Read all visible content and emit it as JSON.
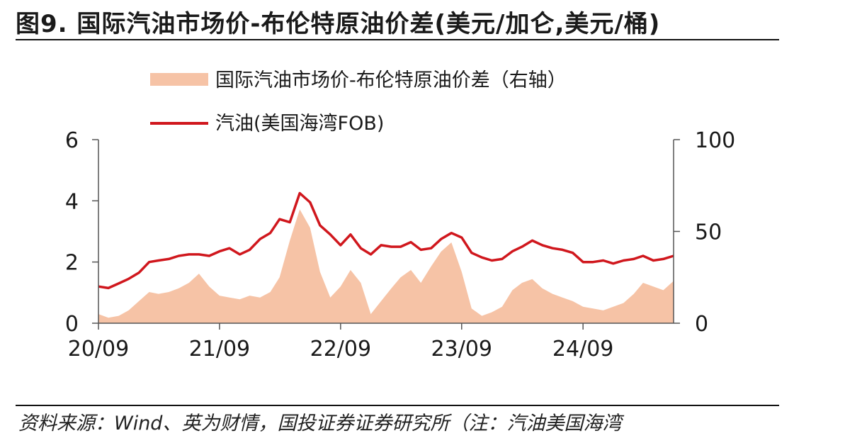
{
  "header": {
    "title": "图9. 国际汽油市场价-布伦特原油价差(美元/加仑,美元/桶)"
  },
  "footer": {
    "source": "资料来源：Wind、英为财情，国投证券证券研究所（注：汽油美国海湾"
  },
  "colors": {
    "line": "#d0171d",
    "area": "#f6c3a6",
    "axis": "#555555",
    "text": "#1a1a1a"
  },
  "chart_data": {
    "type": "line+area",
    "legend": {
      "placement": "top-left",
      "entries": [
        "国际汽油市场价-布伦特原油价差（右轴）",
        "汽油(美国海湾FOB)"
      ]
    },
    "x": {
      "tick_labels": [
        "20/09",
        "21/09",
        "22/09",
        "23/09",
        "24/09"
      ],
      "range": [
        "2020-09",
        "2025-06"
      ]
    },
    "y_left": {
      "range": [
        0,
        6
      ],
      "ticks": [
        "0",
        "2",
        "4",
        "6"
      ]
    },
    "y_right": {
      "range": [
        0,
        100
      ],
      "ticks": [
        "0",
        "50",
        "100"
      ]
    },
    "grid": false,
    "series": [
      {
        "name": "汽油(美国海湾FOB)",
        "axis": "left",
        "kind": "line",
        "dates": [
          "2020-09",
          "2020-10",
          "2020-11",
          "2020-12",
          "2021-01",
          "2021-02",
          "2021-03",
          "2021-04",
          "2021-05",
          "2021-06",
          "2021-07",
          "2021-08",
          "2021-09",
          "2021-10",
          "2021-11",
          "2021-12",
          "2022-01",
          "2022-02",
          "2022-03",
          "2022-04",
          "2022-05",
          "2022-06",
          "2022-07",
          "2022-08",
          "2022-09",
          "2022-10",
          "2022-11",
          "2022-12",
          "2023-01",
          "2023-02",
          "2023-03",
          "2023-04",
          "2023-05",
          "2023-06",
          "2023-07",
          "2023-08",
          "2023-09",
          "2023-10",
          "2023-11",
          "2023-12",
          "2024-01",
          "2024-02",
          "2024-03",
          "2024-04",
          "2024-05",
          "2024-06",
          "2024-07",
          "2024-08",
          "2024-09",
          "2024-10",
          "2024-11",
          "2024-12",
          "2025-01",
          "2025-02",
          "2025-03",
          "2025-04",
          "2025-05",
          "2025-06"
        ],
        "values": [
          1.2,
          1.15,
          1.3,
          1.45,
          1.65,
          2.0,
          2.05,
          2.1,
          2.2,
          2.25,
          2.25,
          2.2,
          2.35,
          2.45,
          2.25,
          2.4,
          2.75,
          2.95,
          3.4,
          3.3,
          4.25,
          3.95,
          3.2,
          2.9,
          2.55,
          2.9,
          2.45,
          2.25,
          2.55,
          2.5,
          2.5,
          2.65,
          2.4,
          2.45,
          2.75,
          2.95,
          2.8,
          2.3,
          2.15,
          2.05,
          2.1,
          2.35,
          2.5,
          2.7,
          2.55,
          2.45,
          2.4,
          2.3,
          2.0,
          2.0,
          2.05,
          1.95,
          2.05,
          2.1,
          2.2,
          2.05,
          2.1,
          2.2
        ]
      },
      {
        "name": "国际汽油市场价-布伦特原油价差（右轴）",
        "axis": "right",
        "kind": "area",
        "dates": [
          "2020-09",
          "2020-10",
          "2020-11",
          "2020-12",
          "2021-01",
          "2021-02",
          "2021-03",
          "2021-04",
          "2021-05",
          "2021-06",
          "2021-07",
          "2021-08",
          "2021-09",
          "2021-10",
          "2021-11",
          "2021-12",
          "2022-01",
          "2022-02",
          "2022-03",
          "2022-04",
          "2022-05",
          "2022-06",
          "2022-07",
          "2022-08",
          "2022-09",
          "2022-10",
          "2022-11",
          "2022-12",
          "2023-01",
          "2023-02",
          "2023-03",
          "2023-04",
          "2023-05",
          "2023-06",
          "2023-07",
          "2023-08",
          "2023-09",
          "2023-10",
          "2023-11",
          "2023-12",
          "2024-01",
          "2024-02",
          "2024-03",
          "2024-04",
          "2024-05",
          "2024-06",
          "2024-07",
          "2024-08",
          "2024-09",
          "2024-10",
          "2024-11",
          "2024-12",
          "2025-01",
          "2025-02",
          "2025-03",
          "2025-04",
          "2025-05",
          "2025-06"
        ],
        "values": [
          5,
          3,
          4,
          7,
          12,
          17,
          16,
          17,
          19,
          22,
          27,
          20,
          15,
          14,
          13,
          15,
          14,
          17,
          25,
          45,
          62,
          52,
          28,
          14,
          20,
          29,
          22,
          5,
          12,
          19,
          25,
          29,
          22,
          31,
          39,
          44,
          28,
          8,
          4,
          6,
          9,
          18,
          22,
          24,
          19,
          16,
          14,
          12,
          9,
          8,
          7,
          9,
          11,
          16,
          22,
          20,
          18,
          23
        ]
      }
    ]
  }
}
